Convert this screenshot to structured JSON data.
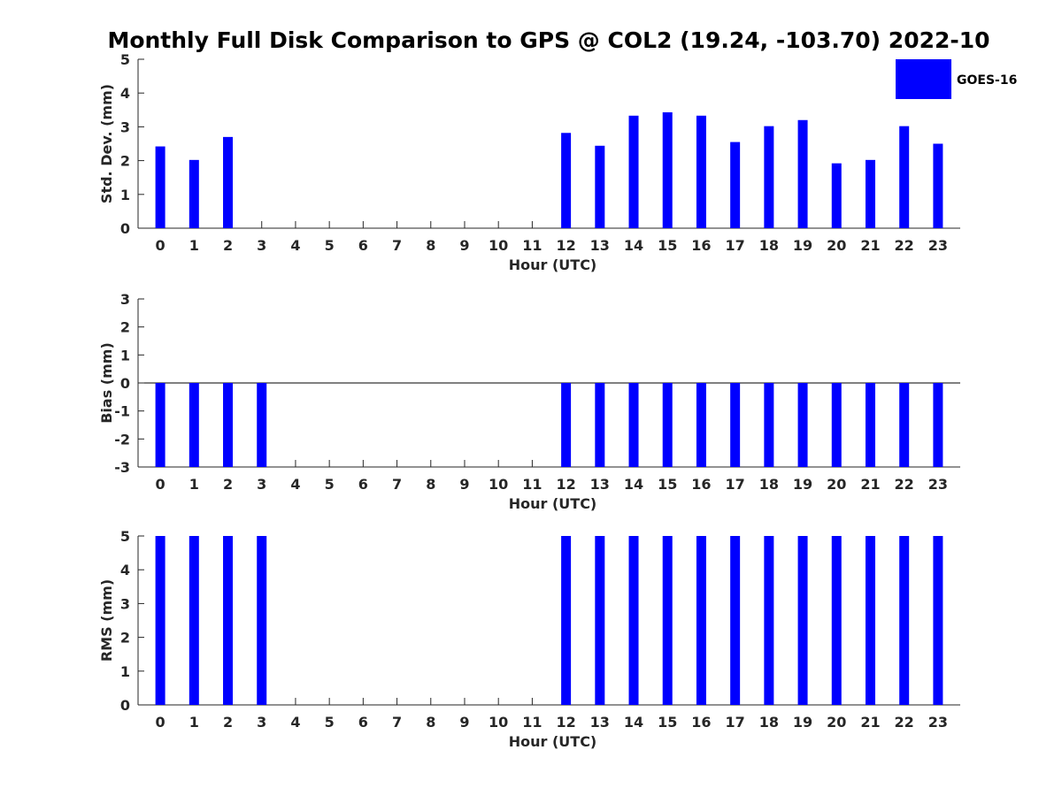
{
  "title": "Monthly Full Disk Comparison to GPS @ COL2 (19.24, -103.70) 2022-10",
  "legend": {
    "label": "GOES-16",
    "color": "#0000ff"
  },
  "bar_color": "#0000ff",
  "chart_data": [
    {
      "type": "bar",
      "id": "std",
      "categories": [
        "0",
        "1",
        "2",
        "3",
        "4",
        "5",
        "6",
        "7",
        "8",
        "9",
        "10",
        "11",
        "12",
        "13",
        "14",
        "15",
        "16",
        "17",
        "18",
        "19",
        "20",
        "21",
        "22",
        "23"
      ],
      "series": [
        {
          "name": "GOES-16",
          "values": [
            2.42,
            2.02,
            2.7,
            null,
            null,
            null,
            null,
            null,
            null,
            null,
            null,
            null,
            2.82,
            2.44,
            3.33,
            3.43,
            3.33,
            2.55,
            3.02,
            3.2,
            1.92,
            2.02,
            3.02,
            2.5
          ]
        }
      ],
      "xlabel": "Hour (UTC)",
      "ylabel": "Std. Dev. (mm)",
      "ylim": [
        0,
        5
      ],
      "yticks": [
        0,
        1,
        2,
        3,
        4,
        5
      ],
      "grid": false,
      "legend_position": "top-right"
    },
    {
      "type": "bar",
      "id": "bias",
      "categories": [
        "0",
        "1",
        "2",
        "3",
        "4",
        "5",
        "6",
        "7",
        "8",
        "9",
        "10",
        "11",
        "12",
        "13",
        "14",
        "15",
        "16",
        "17",
        "18",
        "19",
        "20",
        "21",
        "22",
        "23"
      ],
      "series": [
        {
          "name": "GOES-16",
          "values": [
            -3,
            -3,
            -3,
            -3,
            null,
            null,
            null,
            null,
            null,
            null,
            null,
            null,
            -3,
            -3,
            -3,
            -3,
            -3,
            -3,
            -3,
            -3,
            -3,
            -3,
            -3,
            -3
          ]
        }
      ],
      "xlabel": "Hour (UTC)",
      "ylabel": "Bias (mm)",
      "ylim": [
        -3,
        3
      ],
      "yticks": [
        -3,
        -2,
        -1,
        0,
        1,
        2,
        3
      ],
      "zero_line": true,
      "grid": false
    },
    {
      "type": "bar",
      "id": "rms",
      "categories": [
        "0",
        "1",
        "2",
        "3",
        "4",
        "5",
        "6",
        "7",
        "8",
        "9",
        "10",
        "11",
        "12",
        "13",
        "14",
        "15",
        "16",
        "17",
        "18",
        "19",
        "20",
        "21",
        "22",
        "23"
      ],
      "series": [
        {
          "name": "GOES-16",
          "values": [
            5,
            5,
            5,
            5,
            null,
            null,
            null,
            null,
            null,
            null,
            null,
            null,
            5,
            5,
            5,
            5,
            5,
            5,
            5,
            5,
            5,
            5,
            5,
            5
          ]
        }
      ],
      "xlabel": "Hour (UTC)",
      "ylabel": "RMS (mm)",
      "ylim": [
        0,
        5
      ],
      "yticks": [
        0,
        1,
        2,
        3,
        4,
        5
      ],
      "grid": false
    }
  ]
}
